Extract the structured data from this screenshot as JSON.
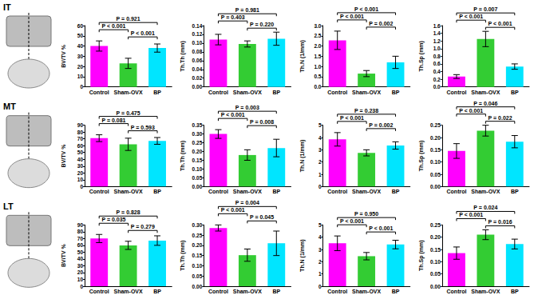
{
  "row_labels": [
    "IT",
    "MT",
    "LT"
  ],
  "chart_data": [
    {
      "type": "bar",
      "y_label": "BV/TV %",
      "categories": [
        "Control",
        "Sham-OVX",
        "BP"
      ],
      "values": [
        40,
        23,
        38
      ],
      "errors": [
        5,
        5,
        4
      ],
      "colors": [
        "#ff00ff",
        "#33cc33",
        "#00e5ff"
      ],
      "ylim": [
        0,
        60
      ],
      "yticks": [
        0,
        10,
        20,
        30,
        40,
        50,
        60
      ],
      "grid": false,
      "annotations": [
        {
          "between": [
            "Control",
            "BP"
          ],
          "text": "P = 0.921"
        },
        {
          "between": [
            "Control",
            "Sham-OVX"
          ],
          "text": "P < 0.001"
        },
        {
          "between": [
            "Sham-OVX",
            "BP"
          ],
          "text": "P < 0.001"
        }
      ]
    },
    {
      "type": "bar",
      "y_label": "Th.Th (mm)",
      "categories": [
        "Control",
        "Sham-OVX",
        "BP"
      ],
      "values": [
        0.108,
        0.098,
        0.11
      ],
      "errors": [
        0.012,
        0.007,
        0.015
      ],
      "colors": [
        "#ff00ff",
        "#33cc33",
        "#00e5ff"
      ],
      "ylim": [
        0,
        0.14
      ],
      "yticks": [
        {
          "value": 0,
          "label": "0.00"
        },
        {
          "value": 0.02,
          "label": "0.02"
        },
        {
          "value": 0.04,
          "label": "0.04"
        },
        {
          "value": 0.06,
          "label": "0.06"
        },
        {
          "value": 0.08,
          "label": "0.08"
        },
        {
          "value": 0.1,
          "label": "0.10"
        },
        {
          "value": 0.12,
          "label": "0.12"
        },
        {
          "value": 0.14,
          "label": "0.14"
        }
      ],
      "grid": false,
      "annotations": [
        {
          "between": [
            "Control",
            "BP"
          ],
          "text": "P = 0.981"
        },
        {
          "between": [
            "Control",
            "Sham-OVX"
          ],
          "text": "P = 0.403"
        },
        {
          "between": [
            "Sham-OVX",
            "BP"
          ],
          "text": "P = 0.220"
        }
      ]
    },
    {
      "type": "bar",
      "y_label": "Th.N (1/mm)",
      "categories": [
        "Control",
        "Sham-OVX",
        "BP"
      ],
      "values": [
        2.28,
        0.65,
        1.2
      ],
      "errors": [
        0.45,
        0.15,
        0.3
      ],
      "colors": [
        "#ff00ff",
        "#33cc33",
        "#00e5ff"
      ],
      "ylim": [
        0,
        3
      ],
      "yticks": [
        {
          "value": 0,
          "label": "0.0"
        },
        0.5,
        {
          "value": 1,
          "label": "1.0"
        },
        1.5,
        {
          "value": 2,
          "label": "2.0"
        },
        2.5,
        {
          "value": 3,
          "label": "3.0"
        }
      ],
      "grid": false,
      "annotations": [
        {
          "between": [
            "Control",
            "BP"
          ],
          "text": "P < 0.001"
        },
        {
          "between": [
            "Control",
            "Sham-OVX"
          ],
          "text": "P < 0.001"
        },
        {
          "between": [
            "Sham-OVX",
            "BP"
          ],
          "text": "P = 0.002"
        }
      ]
    },
    {
      "type": "bar",
      "y_label": "Th.Sp (mm)",
      "categories": [
        "Control",
        "Sham-OVX",
        "BP"
      ],
      "values": [
        0.27,
        1.25,
        0.53
      ],
      "errors": [
        0.05,
        0.2,
        0.07
      ],
      "colors": [
        "#ff00ff",
        "#33cc33",
        "#00e5ff"
      ],
      "ylim": [
        0,
        1.6
      ],
      "yticks": [
        {
          "value": 0,
          "label": "0.0"
        },
        0.2,
        0.4,
        0.6,
        0.8,
        {
          "value": 1,
          "label": "1.0"
        },
        1.2,
        1.4,
        1.6
      ],
      "grid": false,
      "annotations": [
        {
          "between": [
            "Control",
            "BP"
          ],
          "text": "P = 0.007"
        },
        {
          "between": [
            "Control",
            "Sham-OVX"
          ],
          "text": "P < 0.001"
        },
        {
          "between": [
            "Sham-OVX",
            "BP"
          ],
          "text": "P < 0.001"
        }
      ]
    },
    {
      "type": "bar",
      "y_label": "BV/TV %",
      "categories": [
        "Control",
        "Sham-OVX",
        "BP"
      ],
      "values": [
        71,
        62,
        67
      ],
      "errors": [
        5,
        9,
        5
      ],
      "colors": [
        "#ff00ff",
        "#33cc33",
        "#00e5ff"
      ],
      "ylim": [
        0,
        90
      ],
      "yticks": [
        0,
        10,
        20,
        30,
        40,
        50,
        60,
        70,
        80,
        90
      ],
      "grid": false,
      "annotations": [
        {
          "between": [
            "Control",
            "BP"
          ],
          "text": "P = 0.475"
        },
        {
          "between": [
            "Control",
            "Sham-OVX"
          ],
          "text": "P = 0.081"
        },
        {
          "between": [
            "Sham-OVX",
            "BP"
          ],
          "text": "P = 0.593"
        }
      ]
    },
    {
      "type": "bar",
      "y_label": "Th.Th (mm)",
      "categories": [
        "Control",
        "Sham-OVX",
        "BP"
      ],
      "values": [
        0.3,
        0.18,
        0.22
      ],
      "errors": [
        0.025,
        0.03,
        0.05
      ],
      "colors": [
        "#ff00ff",
        "#33cc33",
        "#00e5ff"
      ],
      "ylim": [
        0,
        0.35
      ],
      "yticks": [
        {
          "value": 0,
          "label": "0.00"
        },
        0.05,
        {
          "value": 0.1,
          "label": "0.10"
        },
        0.15,
        {
          "value": 0.2,
          "label": "0.20"
        },
        0.25,
        {
          "value": 0.3,
          "label": "0.30"
        },
        0.35
      ],
      "grid": false,
      "annotations": [
        {
          "between": [
            "Control",
            "BP"
          ],
          "text": "P = 0.003"
        },
        {
          "between": [
            "Control",
            "Sham-OVX"
          ],
          "text": "P < 0.001"
        },
        {
          "between": [
            "Sham-OVX",
            "BP"
          ],
          "text": "P = 0.008"
        }
      ]
    },
    {
      "type": "bar",
      "y_label": "Th.N (1/mm)",
      "categories": [
        "Control",
        "Sham-OVX",
        "BP"
      ],
      "values": [
        3.85,
        2.75,
        3.35
      ],
      "errors": [
        0.55,
        0.25,
        0.3
      ],
      "colors": [
        "#ff00ff",
        "#33cc33",
        "#00e5ff"
      ],
      "ylim": [
        0,
        5
      ],
      "yticks": [
        0,
        1,
        2,
        3,
        4,
        5
      ],
      "grid": false,
      "annotations": [
        {
          "between": [
            "Control",
            "BP"
          ],
          "text": "P = 0.238"
        },
        {
          "between": [
            "Control",
            "Sham-OVX"
          ],
          "text": "P < 0.001"
        },
        {
          "between": [
            "Sham-OVX",
            "BP"
          ],
          "text": "P = 0.002"
        }
      ]
    },
    {
      "type": "bar",
      "y_label": "Th.Sp (mm)",
      "categories": [
        "Control",
        "Sham-OVX",
        "BP"
      ],
      "values": [
        0.145,
        0.228,
        0.183
      ],
      "errors": [
        0.03,
        0.022,
        0.025
      ],
      "colors": [
        "#ff00ff",
        "#33cc33",
        "#00e5ff"
      ],
      "ylim": [
        0,
        0.25
      ],
      "yticks": [
        {
          "value": 0,
          "label": "0.00"
        },
        0.05,
        {
          "value": 0.1,
          "label": "0.10"
        },
        0.15,
        {
          "value": 0.2,
          "label": "0.20"
        },
        0.25
      ],
      "grid": false,
      "annotations": [
        {
          "between": [
            "Control",
            "BP"
          ],
          "text": "P = 0.046"
        },
        {
          "between": [
            "Control",
            "Sham-OVX"
          ],
          "text": "P < 0.001"
        },
        {
          "between": [
            "Sham-OVX",
            "BP"
          ],
          "text": "P = 0.022"
        }
      ]
    },
    {
      "type": "bar",
      "y_label": "BV/TV %",
      "categories": [
        "Control",
        "Sham-OVX",
        "BP"
      ],
      "values": [
        70,
        60,
        67
      ],
      "errors": [
        6,
        6,
        7
      ],
      "colors": [
        "#ff00ff",
        "#33cc33",
        "#00e5ff"
      ],
      "ylim": [
        0,
        90
      ],
      "yticks": [
        0,
        10,
        20,
        30,
        40,
        50,
        60,
        70,
        80,
        90
      ],
      "grid": false,
      "annotations": [
        {
          "between": [
            "Control",
            "BP"
          ],
          "text": "P = 0.828"
        },
        {
          "between": [
            "Control",
            "Sham-OVX"
          ],
          "text": "P = 0.035"
        },
        {
          "between": [
            "Sham-OVX",
            "BP"
          ],
          "text": "P = 0.279"
        }
      ]
    },
    {
      "type": "bar",
      "y_label": "Th.Th (mm)",
      "categories": [
        "Control",
        "Sham-OVX",
        "BP"
      ],
      "values": [
        0.285,
        0.152,
        0.21
      ],
      "errors": [
        0.015,
        0.03,
        0.06
      ],
      "colors": [
        "#ff00ff",
        "#33cc33",
        "#00e5ff"
      ],
      "ylim": [
        0,
        0.3
      ],
      "yticks": [
        {
          "value": 0,
          "label": "0.00"
        },
        0.05,
        {
          "value": 0.1,
          "label": "0.10"
        },
        0.15,
        {
          "value": 0.2,
          "label": "0.20"
        },
        0.25,
        {
          "value": 0.3,
          "label": "0.30"
        }
      ],
      "grid": false,
      "annotations": [
        {
          "between": [
            "Control",
            "BP"
          ],
          "text": "P = 0.004"
        },
        {
          "between": [
            "Control",
            "Sham-OVX"
          ],
          "text": "P < 0.001"
        },
        {
          "between": [
            "Sham-OVX",
            "BP"
          ],
          "text": "P = 0.045"
        }
      ]
    },
    {
      "type": "bar",
      "y_label": "Th.N (1/mm)",
      "categories": [
        "Control",
        "Sham-OVX",
        "BP"
      ],
      "values": [
        3.5,
        2.45,
        3.4
      ],
      "errors": [
        0.6,
        0.3,
        0.35
      ],
      "colors": [
        "#ff00ff",
        "#33cc33",
        "#00e5ff"
      ],
      "ylim": [
        0,
        5
      ],
      "yticks": [
        0,
        1,
        2,
        3,
        4,
        5
      ],
      "grid": false,
      "annotations": [
        {
          "between": [
            "Control",
            "BP"
          ],
          "text": "P = 0.950"
        },
        {
          "between": [
            "Control",
            "Sham-OVX"
          ],
          "text": "P < 0.001"
        },
        {
          "between": [
            "Sham-OVX",
            "BP"
          ],
          "text": "P < 0.001"
        }
      ]
    },
    {
      "type": "bar",
      "y_label": "Th.Sp (mm)",
      "categories": [
        "Control",
        "Sham-OVX",
        "BP"
      ],
      "values": [
        0.135,
        0.21,
        0.172
      ],
      "errors": [
        0.025,
        0.02,
        0.02
      ],
      "colors": [
        "#ff00ff",
        "#33cc33",
        "#00e5ff"
      ],
      "ylim": [
        0,
        0.25
      ],
      "yticks": [
        {
          "value": 0,
          "label": "0.00"
        },
        0.05,
        {
          "value": 0.1,
          "label": "0.10"
        },
        0.15,
        {
          "value": 0.2,
          "label": "0.20"
        },
        0.25
      ],
      "grid": false,
      "annotations": [
        {
          "between": [
            "Control",
            "BP"
          ],
          "text": "P = 0.024"
        },
        {
          "between": [
            "Control",
            "Sham-OVX"
          ],
          "text": "P < 0.001"
        },
        {
          "between": [
            "Sham-OVX",
            "BP"
          ],
          "text": "P = 0.016"
        }
      ]
    }
  ]
}
